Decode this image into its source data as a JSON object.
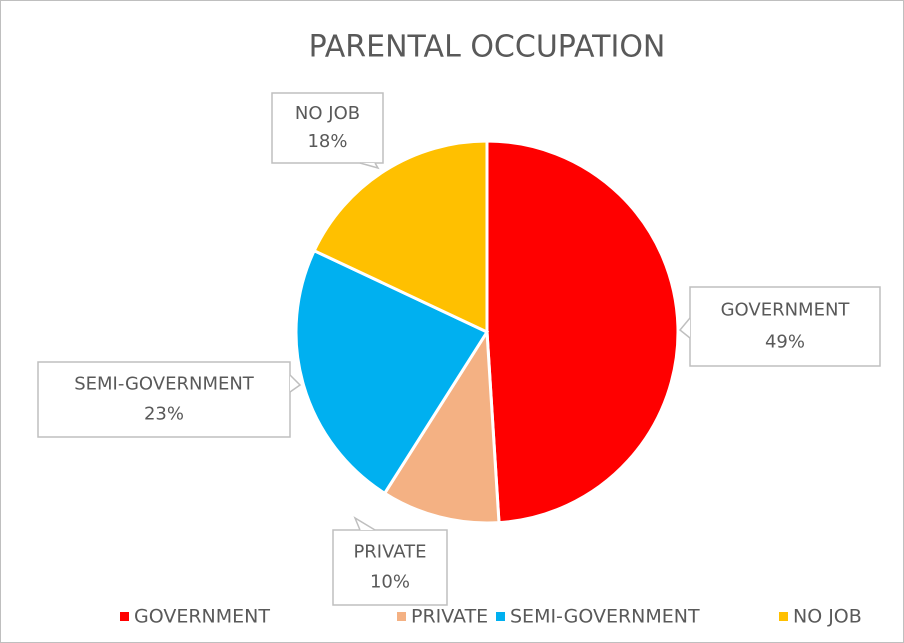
{
  "chart_data": {
    "type": "pie",
    "title": "PARENTAL OCCUPATION",
    "categories": [
      "GOVERNMENT",
      "PRIVATE",
      "SEMI-GOVERNMENT",
      "NO JOB"
    ],
    "values": [
      49,
      10,
      23,
      18
    ],
    "value_labels": [
      "49%",
      "10%",
      "23%",
      "18%"
    ],
    "colors": [
      "#ff0000",
      "#f4b183",
      "#00b0f0",
      "#ffc000"
    ],
    "legend": "bottom"
  }
}
